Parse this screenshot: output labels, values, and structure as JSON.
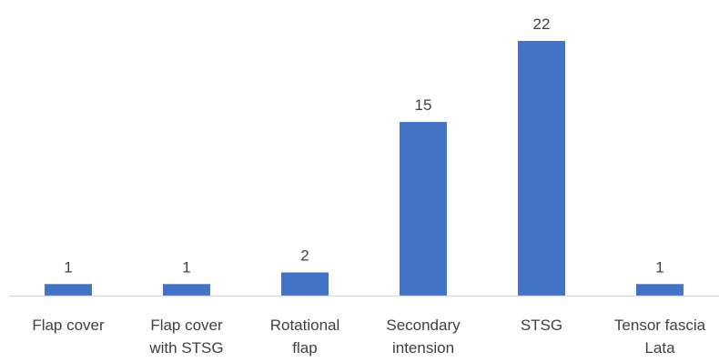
{
  "chart_data": {
    "type": "bar",
    "categories": [
      [
        "Flap cover"
      ],
      [
        "Flap cover",
        "with STSG"
      ],
      [
        "Rotational",
        "flap"
      ],
      [
        "Secondary",
        "intension"
      ],
      [
        "STSG"
      ],
      [
        "Tensor fascia",
        "Lata"
      ]
    ],
    "values": [
      1,
      1,
      2,
      15,
      22,
      1
    ],
    "data_labels": [
      "1",
      "1",
      "2",
      "15",
      "22",
      "1"
    ],
    "title": "",
    "xlabel": "",
    "ylabel": "",
    "ylim": [
      0,
      22
    ],
    "grid": false,
    "legend": "none",
    "bar_color": "#4472c4"
  }
}
